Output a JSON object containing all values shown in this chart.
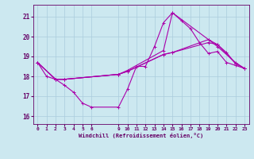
{
  "xlabel": "Windchill (Refroidissement éolien,°C)",
  "bg_color": "#cce8f0",
  "line_color": "#aa00aa",
  "grid_color": "#aaccdd",
  "axis_color": "#660066",
  "text_color": "#660066",
  "xlim": [
    -0.5,
    23.5
  ],
  "ylim": [
    15.6,
    21.6
  ],
  "yticks": [
    16,
    17,
    18,
    19,
    20,
    21
  ],
  "xticks": [
    0,
    1,
    2,
    3,
    4,
    5,
    6,
    9,
    10,
    11,
    12,
    13,
    14,
    15,
    16,
    17,
    18,
    19,
    20,
    21,
    22,
    23
  ],
  "series": [
    {
      "x": [
        0,
        1,
        2,
        3,
        4,
        5,
        6,
        9,
        10,
        11,
        12,
        13,
        14,
        15,
        16,
        17,
        18,
        19,
        20,
        21,
        22,
        23
      ],
      "y": [
        18.7,
        18.0,
        17.85,
        17.55,
        17.2,
        16.65,
        16.45,
        16.45,
        17.35,
        18.5,
        18.5,
        19.5,
        20.7,
        21.2,
        20.8,
        20.4,
        19.7,
        19.15,
        19.25,
        18.7,
        18.55,
        18.4
      ]
    },
    {
      "x": [
        0,
        2,
        3,
        9,
        10,
        14,
        15,
        19,
        20,
        21,
        22,
        23
      ],
      "y": [
        18.7,
        17.85,
        17.85,
        18.1,
        18.25,
        19.1,
        19.2,
        19.7,
        19.6,
        19.2,
        18.65,
        18.4
      ]
    },
    {
      "x": [
        0,
        2,
        3,
        9,
        10,
        14,
        15,
        19,
        20,
        22,
        23
      ],
      "y": [
        18.7,
        17.85,
        17.85,
        18.1,
        18.25,
        19.1,
        19.2,
        19.85,
        19.6,
        18.65,
        18.4
      ]
    },
    {
      "x": [
        0,
        2,
        3,
        9,
        10,
        14,
        15,
        19,
        20,
        22,
        23
      ],
      "y": [
        18.7,
        17.85,
        17.85,
        18.1,
        18.3,
        19.3,
        21.2,
        19.85,
        19.5,
        18.7,
        18.4
      ]
    }
  ]
}
